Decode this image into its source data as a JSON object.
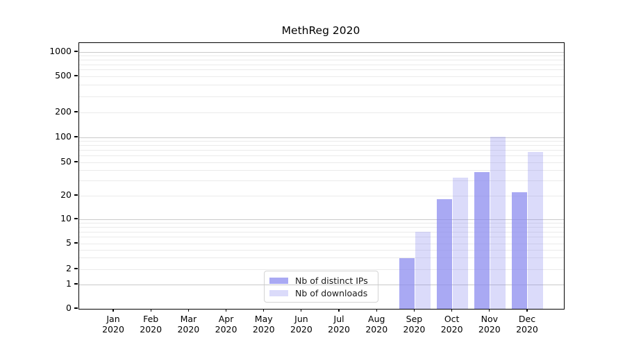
{
  "chart_data": {
    "type": "bar",
    "title": "MethReg 2020",
    "categories": [
      "Jan 2020",
      "Feb 2020",
      "Mar 2020",
      "Apr 2020",
      "May 2020",
      "Jun 2020",
      "Jul 2020",
      "Aug 2020",
      "Sep 2020",
      "Oct 2020",
      "Nov 2020",
      "Dec 2020"
    ],
    "series": [
      {
        "name": "Nb of distinct IPs",
        "values": [
          0,
          0,
          0,
          0,
          0,
          0,
          0,
          0,
          3,
          18,
          38,
          22
        ]
      },
      {
        "name": "Nb of downloads",
        "values": [
          0,
          0,
          0,
          0,
          0,
          0,
          0,
          0,
          7,
          33,
          101,
          67
        ]
      }
    ],
    "yscale": "symlog",
    "y_tick_labels": [
      0,
      1,
      2,
      5,
      10,
      20,
      50,
      100,
      200,
      500,
      1000
    ],
    "ylim": [
      0,
      1100
    ],
    "xlabel": "",
    "ylabel": "",
    "grid": "horizontal",
    "legend_position": "lower-center-inside"
  },
  "colors": {
    "series_distinct_ips": "rgba(136,136,238,0.72)",
    "series_downloads": "rgba(136,136,238,0.30)",
    "grid_major": "#c9c9c9",
    "grid_minor": "#eaeaea",
    "axis": "#000000",
    "text": "#1a1a1a",
    "legend_border": "#d4d4d4"
  }
}
